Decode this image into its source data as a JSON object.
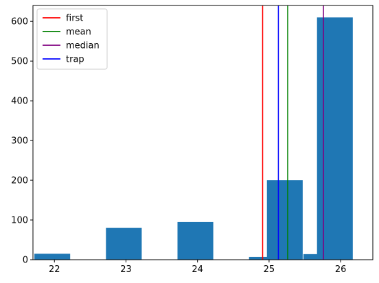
{
  "chart_data": {
    "type": "bar",
    "title": "",
    "xlabel": "",
    "ylabel": "",
    "xlim": [
      21.7,
      26.45
    ],
    "ylim": [
      0,
      640
    ],
    "bar_width": 0.5,
    "grid": false,
    "bar_color": "#1f77b4",
    "bars": [
      {
        "x": 21.97,
        "value": 15
      },
      {
        "x": 22.97,
        "value": 80
      },
      {
        "x": 23.97,
        "value": 95
      },
      {
        "x": 24.97,
        "value": 7
      },
      {
        "x": 25.22,
        "value": 200
      },
      {
        "x": 25.73,
        "value": 14
      },
      {
        "x": 25.92,
        "value": 610
      }
    ],
    "x_ticks": [
      22,
      23,
      24,
      25,
      26
    ],
    "y_ticks": [
      0,
      100,
      200,
      300,
      400,
      500,
      600
    ],
    "vlines": [
      {
        "name": "first",
        "x": 24.91,
        "color": "#ff0000"
      },
      {
        "name": "mean",
        "x": 25.26,
        "color": "#008000"
      },
      {
        "name": "median",
        "x": 25.76,
        "color": "#800080"
      },
      {
        "name": "trap",
        "x": 25.13,
        "color": "#0000ff"
      }
    ],
    "legend": {
      "position": "top-left",
      "entries": [
        {
          "label": "first",
          "color": "#ff0000"
        },
        {
          "label": "mean",
          "color": "#008000"
        },
        {
          "label": "median",
          "color": "#800080"
        },
        {
          "label": "trap",
          "color": "#0000ff"
        }
      ]
    }
  }
}
